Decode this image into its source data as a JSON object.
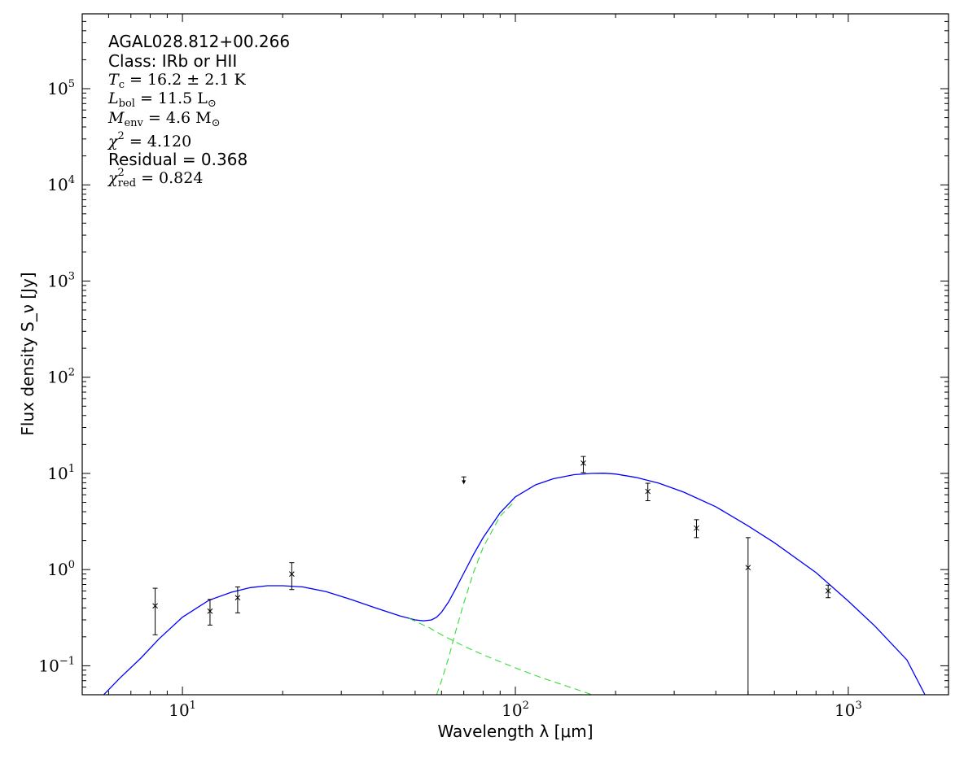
{
  "chart_data": {
    "type": "scatter",
    "xscale": "log",
    "yscale": "log",
    "xlim": [
      5,
      2000
    ],
    "ylim": [
      0.05,
      600000
    ],
    "grid": false,
    "xlabel": "Wavelength λ [μm]",
    "ylabel": "Flux density S_ν [Jy]",
    "x_ticks": [
      {
        "value": 10,
        "base": "10",
        "exp": "1"
      },
      {
        "value": 100,
        "base": "10",
        "exp": "2"
      },
      {
        "value": 1000,
        "base": "10",
        "exp": "3"
      }
    ],
    "y_ticks": [
      {
        "value": 0.1,
        "base": "10",
        "exp": "−1"
      },
      {
        "value": 1,
        "base": "10",
        "exp": "0"
      },
      {
        "value": 10,
        "base": "10",
        "exp": "1"
      },
      {
        "value": 100,
        "base": "10",
        "exp": "2"
      },
      {
        "value": 1000,
        "base": "10",
        "exp": "3"
      },
      {
        "value": 10000,
        "base": "10",
        "exp": "4"
      },
      {
        "value": 100000,
        "base": "10",
        "exp": "5"
      }
    ],
    "annotations": {
      "source": "AGAL028.812+00.266",
      "class": "Class: IRb or HII",
      "tc": {
        "symbol": "T",
        "sub": "c",
        "value": " = 16.2 ± 2.1 K"
      },
      "lbol": {
        "symbol": "L",
        "sub": "bol",
        "value": " = 11.5 L",
        "tail": "⊙"
      },
      "menv": {
        "symbol": "M",
        "sub": "env",
        "value": " = 4.6 M",
        "tail": "⊙"
      },
      "chi2": {
        "symbol": "χ",
        "sup": "2",
        "value": " = 4.120"
      },
      "residual": "Residual = 0.368",
      "chi2red": {
        "symbol": "χ",
        "sup": "2",
        "sub": "red",
        "value": " = 0.824"
      }
    },
    "points": [
      {
        "x": 8.28,
        "y": 0.42,
        "ylo": 0.21,
        "yhi": 0.64
      },
      {
        "x": 12.1,
        "y": 0.37,
        "ylo": 0.265,
        "yhi": 0.49
      },
      {
        "x": 14.65,
        "y": 0.51,
        "ylo": 0.355,
        "yhi": 0.66
      },
      {
        "x": 21.3,
        "y": 0.9,
        "ylo": 0.62,
        "yhi": 1.18
      },
      {
        "x": 160,
        "y": 12.8,
        "ylo": 10.2,
        "yhi": 15.0
      },
      {
        "x": 250,
        "y": 6.5,
        "ylo": 5.2,
        "yhi": 7.9
      },
      {
        "x": 350,
        "y": 2.7,
        "ylo": 2.15,
        "yhi": 3.3
      },
      {
        "x": 500,
        "y": 1.05,
        "ylo": 0.05,
        "yhi": 2.15
      },
      {
        "x": 870,
        "y": 0.6,
        "ylo": 0.51,
        "yhi": 0.69
      }
    ],
    "upper_limits": [
      {
        "x": 70,
        "y": 8.0,
        "yhi": 9.2
      }
    ],
    "series": [
      {
        "color": "#0000ff",
        "style": "solid",
        "x": [
          5.8,
          6.5,
          7.5,
          8.5,
          10,
          12,
          14,
          16,
          18,
          20,
          23,
          27,
          32,
          38,
          45,
          50,
          53,
          56,
          58,
          60,
          63,
          66,
          70,
          75,
          80,
          90,
          100,
          115,
          130,
          150,
          170,
          185,
          200,
          230,
          270,
          320,
          400,
          500,
          600,
          800,
          1000,
          1200,
          1500,
          1700
        ],
        "y": [
          0.05,
          0.075,
          0.12,
          0.19,
          0.32,
          0.48,
          0.58,
          0.65,
          0.68,
          0.68,
          0.66,
          0.59,
          0.49,
          0.4,
          0.33,
          0.3,
          0.293,
          0.3,
          0.32,
          0.36,
          0.46,
          0.62,
          0.92,
          1.45,
          2.15,
          3.9,
          5.7,
          7.6,
          8.8,
          9.7,
          10.0,
          10.05,
          9.85,
          9.1,
          7.9,
          6.4,
          4.5,
          2.85,
          1.9,
          0.93,
          0.47,
          0.26,
          0.115,
          0.05
        ]
      },
      {
        "color": "#33dd33",
        "style": "dashed",
        "x": [
          48,
          55,
          60,
          70,
          80,
          100,
          120,
          150,
          170
        ],
        "y": [
          0.31,
          0.25,
          0.21,
          0.16,
          0.13,
          0.095,
          0.075,
          0.058,
          0.05
        ]
      },
      {
        "color": "#33dd33",
        "style": "dashed",
        "x": [
          58,
          60,
          63,
          66,
          70,
          75,
          80,
          90,
          100
        ],
        "y": [
          0.05,
          0.07,
          0.12,
          0.22,
          0.45,
          0.95,
          1.7,
          3.6,
          5.2
        ]
      }
    ]
  }
}
